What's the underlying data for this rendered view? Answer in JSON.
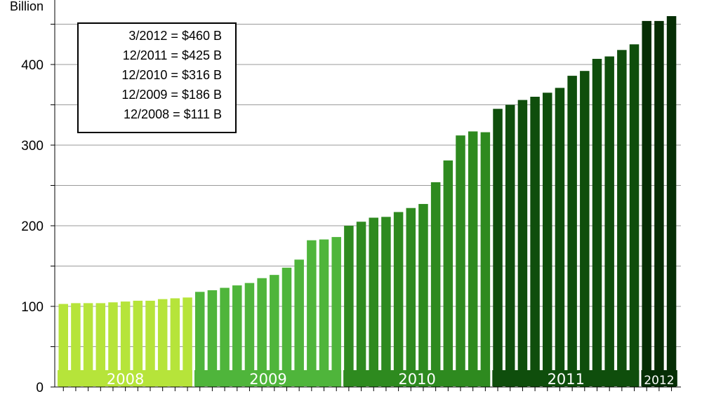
{
  "chart_data": {
    "type": "bar",
    "title": "",
    "ylabel": "Billion",
    "xlabel": "",
    "ylim": [
      0,
      470
    ],
    "yticks": [
      0,
      100,
      200,
      300,
      400
    ],
    "gridlines": [
      50,
      100,
      150,
      200,
      250,
      300,
      350,
      400,
      450
    ],
    "values": [
      103,
      104,
      104,
      104,
      105,
      106,
      107,
      107,
      109,
      110,
      111,
      118,
      120,
      123,
      126,
      129,
      135,
      139,
      148,
      158,
      182,
      183,
      186,
      200,
      205,
      210,
      211,
      217,
      222,
      227,
      254,
      281,
      312,
      317,
      316,
      345,
      350,
      356,
      360,
      365,
      371,
      386,
      392,
      407,
      410,
      418,
      425,
      454,
      454,
      460
    ],
    "year_groups": [
      {
        "label": "2008",
        "start": 0,
        "end": 10,
        "color": "#b6e43a"
      },
      {
        "label": "2009",
        "start": 11,
        "end": 22,
        "color": "#4fb53b"
      },
      {
        "label": "2010",
        "start": 23,
        "end": 34,
        "color": "#2e8a1f"
      },
      {
        "label": "2011",
        "start": 35,
        "end": 46,
        "color": "#0f4e0c"
      },
      {
        "label": "2012",
        "start": 47,
        "end": 49,
        "color": "#062e05"
      }
    ],
    "legend": {
      "position": "top-left",
      "entries": [
        "3/2012 = $460 B",
        "12/2011 = $425 B",
        "12/2010 = $316 B",
        "12/2009 = $186 B",
        "12/2008 = $111 B"
      ]
    }
  }
}
